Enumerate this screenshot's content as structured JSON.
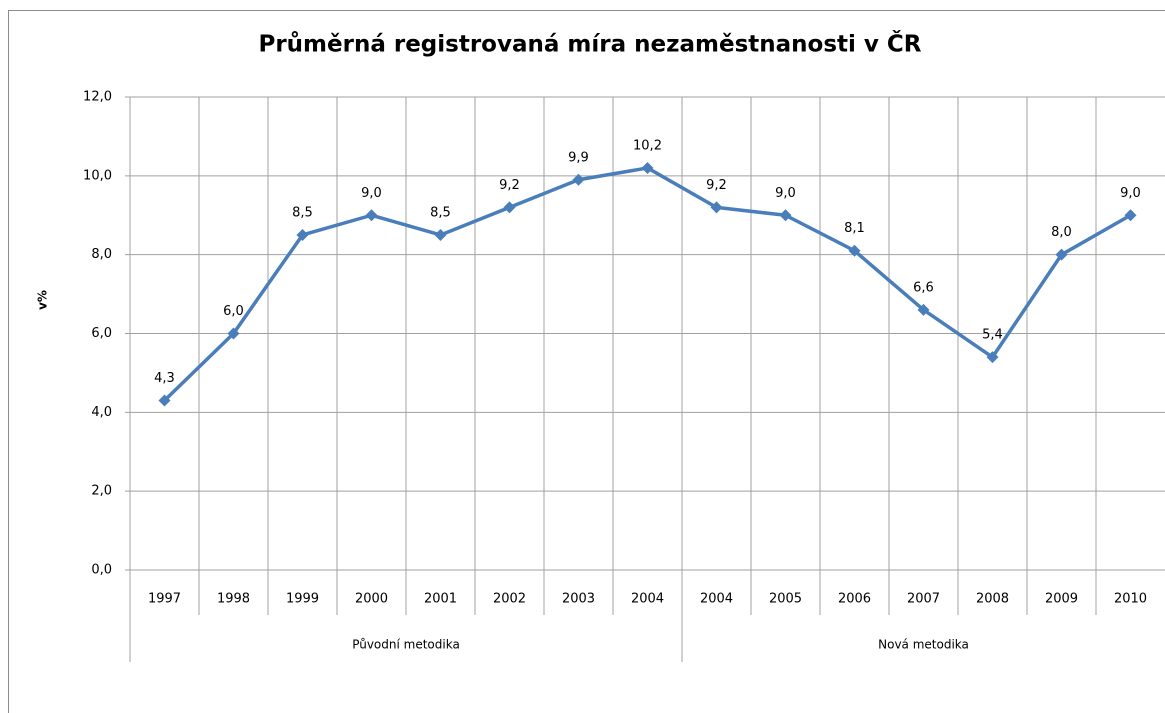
{
  "chart_data": {
    "type": "line",
    "title": "Průměrná registrovaná míra nezaměstnanosti v ČR",
    "y_label": "v%",
    "groups": [
      {
        "label": "Původní metodika",
        "categories": [
          "1997",
          "1998",
          "1999",
          "2000",
          "2001",
          "2002",
          "2003",
          "2004"
        ]
      },
      {
        "label": "Nová metodika",
        "categories": [
          "2004",
          "2005",
          "2006",
          "2007",
          "2008",
          "2009",
          "2010"
        ]
      }
    ],
    "series": [
      {
        "name": "v%",
        "color": "#4a7ebb",
        "values": [
          4.3,
          6.0,
          8.5,
          9.0,
          8.5,
          9.2,
          9.9,
          10.2,
          9.2,
          9.0,
          8.1,
          6.6,
          5.4,
          8.0,
          9.0
        ],
        "value_labels": [
          "4,3",
          "6,0",
          "8,5",
          "9,0",
          "8,5",
          "9,2",
          "9,9",
          "10,2",
          "9,2",
          "9,0",
          "8,1",
          "6,6",
          "5,4",
          "8,0",
          "9,0"
        ]
      }
    ],
    "ylim": [
      0,
      12
    ],
    "yticks": [
      {
        "value": 0,
        "label": "0,0"
      },
      {
        "value": 2,
        "label": "2,0"
      },
      {
        "value": 4,
        "label": "4,0"
      },
      {
        "value": 6,
        "label": "6,0"
      },
      {
        "value": 8,
        "label": "8,0"
      },
      {
        "value": 10,
        "label": "10,0"
      },
      {
        "value": 12,
        "label": "12,0"
      }
    ],
    "grid": true
  }
}
